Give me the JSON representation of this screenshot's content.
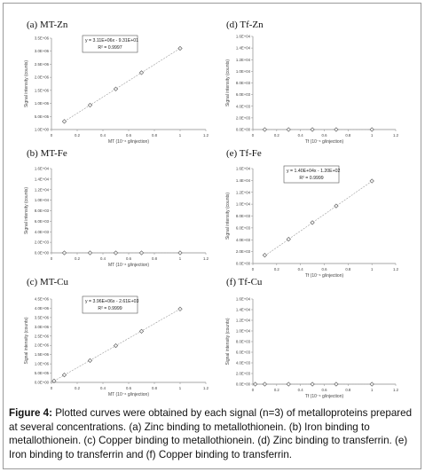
{
  "chart_data": [
    {
      "type": "scatter",
      "panel_title": "(a)  MT-Zn",
      "xlabel": "MT (10⁻⁶ g/injection)",
      "ylabel": "Signal intensity (counts)",
      "xlim": [
        0,
        1.2
      ],
      "ylim": [
        0,
        3500000
      ],
      "xticks": [
        "0",
        "0.2",
        "0.4",
        "0.6",
        "0.8",
        "1",
        "1.2"
      ],
      "yticks": [
        "1.0E+00",
        "5.0E+05",
        "1.0E+06",
        "1.5E+06",
        "2.0E+06",
        "2.5E+06",
        "3.0E+06",
        "3.5E+06"
      ],
      "x": [
        0.1,
        0.3,
        0.5,
        0.7,
        1.0
      ],
      "y": [
        311000,
        933000,
        1555000,
        2177000,
        3110000
      ],
      "trendline": {
        "slope": 3110000,
        "intercept": 0
      },
      "equation": "y = 3.11E+06x - 9.31E+01",
      "r2": "R² = 0.9997",
      "eq_box": true
    },
    {
      "type": "scatter",
      "panel_title": "(d)  Tf-Zn",
      "xlabel": "Tf (10⁻⁶ g/injection)",
      "ylabel": "Signal intensity (counts)",
      "xlim": [
        0,
        1.2
      ],
      "ylim": [
        0,
        16000
      ],
      "xticks": [
        "0",
        "0.2",
        "0.4",
        "0.6",
        "0.8",
        "1",
        "1.2"
      ],
      "yticks": [
        "0.0E+00",
        "2.0E+03",
        "4.0E+03",
        "6.0E+03",
        "8.0E+03",
        "1.0E+04",
        "1.2E+04",
        "1.4E+04",
        "1.6E+04"
      ],
      "x": [
        0.1,
        0.3,
        0.5,
        0.7,
        1.0
      ],
      "y": [
        0,
        0,
        0,
        0,
        0
      ],
      "trendline": {
        "slope": 0,
        "intercept": 0
      },
      "equation": "",
      "r2": "",
      "eq_box": false
    },
    {
      "type": "scatter",
      "panel_title": "(b)  MT-Fe",
      "xlabel": "MT (10⁻⁶ g/injection)",
      "ylabel": "Signal intensity (counts)",
      "xlim": [
        0,
        1.2
      ],
      "ylim": [
        0,
        16000
      ],
      "xticks": [
        "0",
        "0.2",
        "0.4",
        "0.6",
        "0.8",
        "1",
        "1.2"
      ],
      "yticks": [
        "0.0E+00",
        "2.0E+03",
        "4.0E+03",
        "6.0E+03",
        "8.0E+03",
        "1.0E+04",
        "1.2E+04",
        "1.4E+04",
        "1.6E+04"
      ],
      "x": [
        0.1,
        0.3,
        0.5,
        0.7,
        1.0
      ],
      "y": [
        0,
        0,
        0,
        0,
        0
      ],
      "trendline": {
        "slope": 0,
        "intercept": 0
      },
      "equation": "",
      "r2": "",
      "eq_box": false
    },
    {
      "type": "scatter",
      "panel_title": "(e)  Tf-Fe",
      "xlabel": "Tf (10⁻⁶ g/injection)",
      "ylabel": "Signal intensity (counts)",
      "xlim": [
        0,
        1.2
      ],
      "ylim": [
        0,
        16000
      ],
      "xticks": [
        "0",
        "0.2",
        "0.4",
        "0.6",
        "0.8",
        "1",
        "1.2"
      ],
      "yticks": [
        "0.0E+00",
        "2.0E+03",
        "4.0E+03",
        "6.0E+03",
        "8.0E+03",
        "1.0E+04",
        "1.2E+04",
        "1.4E+04",
        "1.6E+04"
      ],
      "x": [
        0.1,
        0.3,
        0.5,
        0.7,
        1.0
      ],
      "y": [
        1400,
        4100,
        6900,
        9700,
        13900
      ],
      "trendline": {
        "slope": 14000,
        "intercept": -120
      },
      "equation": "y = 1.40E+04x - 1.20E+02",
      "r2": "R² = 0.9999",
      "eq_box": true
    },
    {
      "type": "scatter",
      "panel_title": "(c)  MT-Cu",
      "xlabel": "MT (10⁻⁶ g/injection)",
      "ylabel": "Signal intensity (counts)",
      "xlim": [
        0,
        1.2
      ],
      "ylim": [
        0,
        4500000
      ],
      "xticks": [
        "0",
        "0.2",
        "0.4",
        "0.6",
        "0.8",
        "1",
        "1.2"
      ],
      "yticks": [
        "0.0E+00",
        "5.0E+05",
        "1.0E+06",
        "1.5E+06",
        "2.0E+06",
        "2.5E+06",
        "3.0E+06",
        "3.5E+06",
        "4.0E+06",
        "4.5E+06"
      ],
      "x": [
        0.02,
        0.1,
        0.3,
        0.5,
        0.7,
        1.0
      ],
      "y": [
        80000,
        400000,
        1180000,
        1980000,
        2760000,
        3960000
      ],
      "trendline": {
        "slope": 3960000,
        "intercept": 0
      },
      "equation": "y = 3.96E+06x - 2.61E+03",
      "r2": "R² = 0.9999",
      "eq_box": true
    },
    {
      "type": "scatter",
      "panel_title": "(f)  Tf-Cu",
      "xlabel": "Tf (10⁻⁶ g/injection)",
      "ylabel": "Signal intensity (counts)",
      "xlim": [
        0,
        1.2
      ],
      "ylim": [
        0,
        16000
      ],
      "xticks": [
        "0",
        "0.2",
        "0.4",
        "0.6",
        "0.8",
        "1",
        "1.2"
      ],
      "yticks": [
        "0.0E+00",
        "2.0E+03",
        "4.0E+03",
        "6.0E+03",
        "8.0E+03",
        "1.0E+04",
        "1.2E+04",
        "1.4E+04",
        "1.6E+04"
      ],
      "x": [
        0.02,
        0.1,
        0.3,
        0.5,
        0.7,
        1.0
      ],
      "y": [
        0,
        0,
        0,
        0,
        0,
        0
      ],
      "trendline": {
        "slope": 0,
        "intercept": 0
      },
      "equation": "",
      "r2": "",
      "eq_box": false
    }
  ],
  "caption": {
    "label": "Figure 4:",
    "text": " Plotted curves were obtained by each signal (n=3) of metalloproteins prepared at several concentrations. (a) Zinc binding to metallothionein. (b) Iron binding to metallothionein. (c) Copper binding to metallothionein. (d) Zinc binding to transferrin. (e) Iron binding to transferrin and (f) Copper binding to transferrin."
  },
  "colors": {
    "marker": "#555555",
    "trendline": "#9a9a9a",
    "axis": "#8a8a8a",
    "frame": "#9a9a9a"
  }
}
